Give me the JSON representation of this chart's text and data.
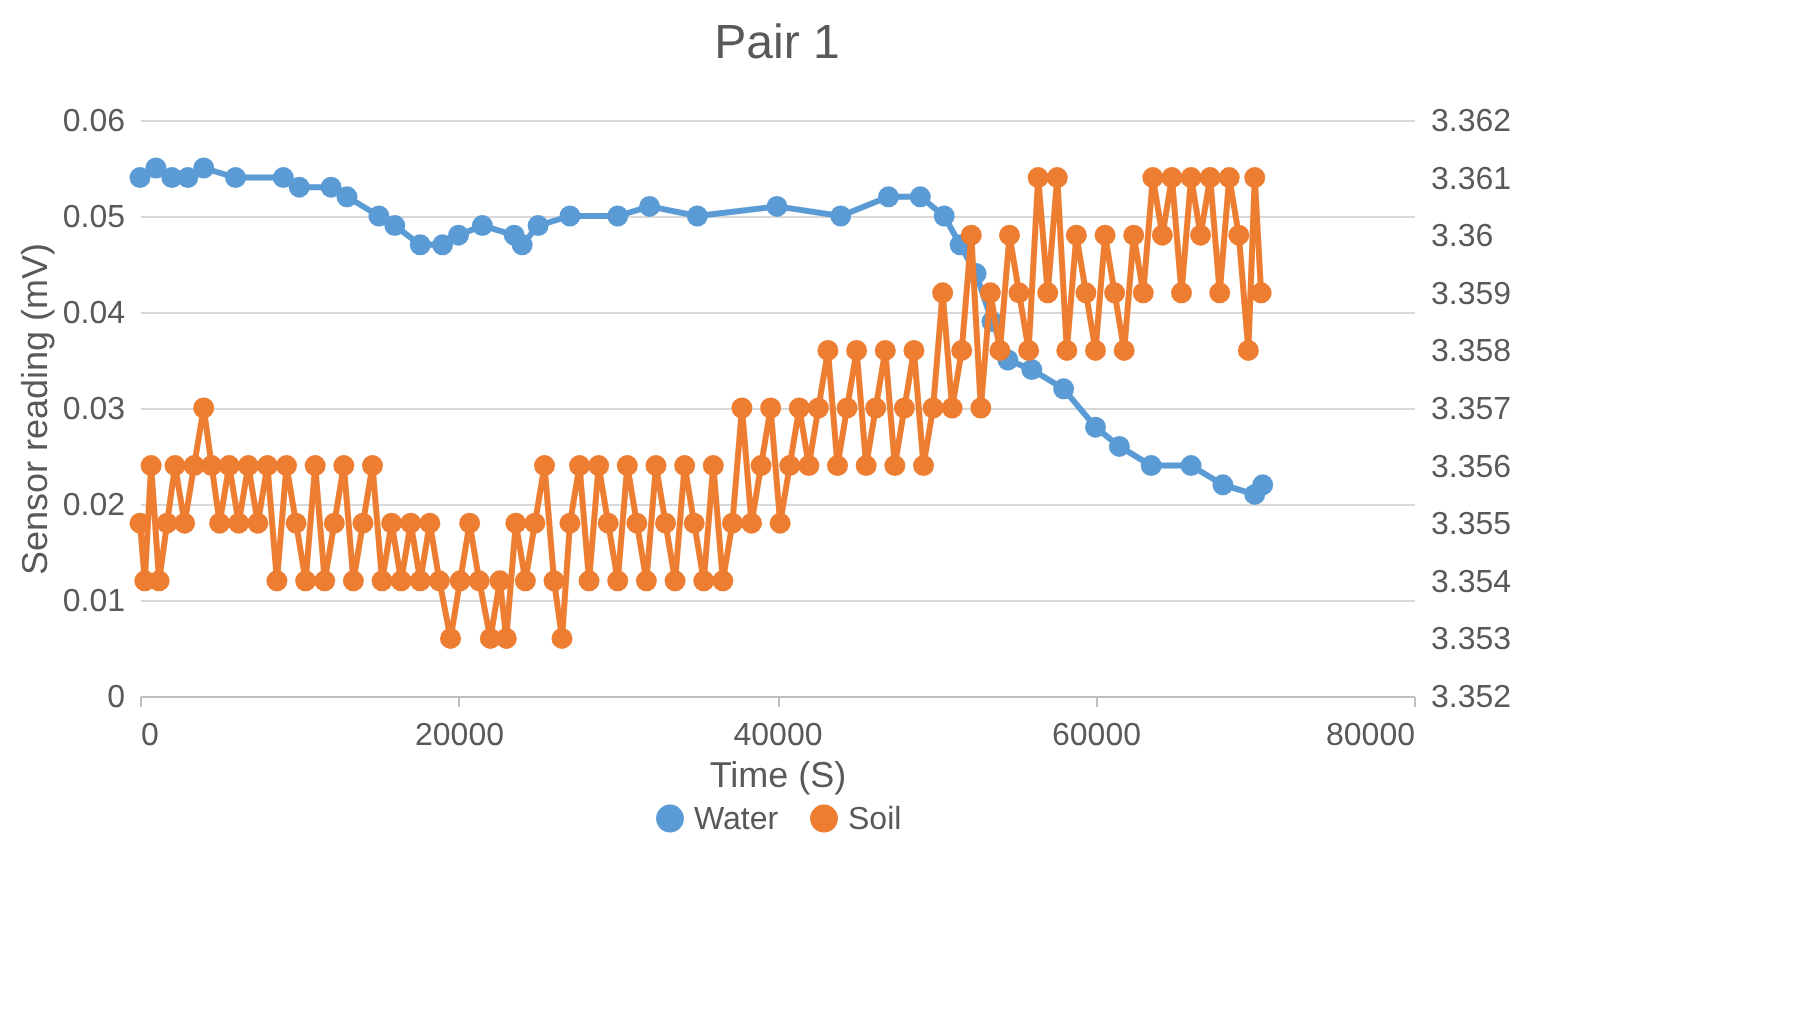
{
  "chart_data": {
    "type": "line",
    "title": "Pair 1",
    "xlabel": "Time (S)",
    "ylabel": "Sensor reading (mV)",
    "xlim": [
      0,
      80000
    ],
    "xticks": [
      0,
      20000,
      40000,
      60000,
      80000
    ],
    "ylim": [
      0,
      0.06
    ],
    "yticks": [
      0,
      0.01,
      0.02,
      0.03,
      0.04,
      0.05,
      0.06
    ],
    "y2lim": [
      3.352,
      3.362
    ],
    "y2ticks": [
      3.352,
      3.353,
      3.354,
      3.355,
      3.356,
      3.357,
      3.358,
      3.359,
      3.36,
      3.361,
      3.362
    ],
    "grid": "y",
    "legend": "bottom",
    "marker": "circle",
    "line_style": "solid",
    "series": [
      {
        "name": "Water",
        "color": "#5b9bd5",
        "x": [
          0,
          1000,
          2000,
          3000,
          4000,
          6000,
          9000,
          10000,
          12000,
          13000,
          15000,
          16000,
          17600,
          19000,
          20000,
          21500,
          23500,
          24000,
          25000,
          27000,
          30000,
          32000,
          35000,
          40000,
          44000,
          47000,
          49000,
          50500,
          51500,
          52500,
          53500,
          54500,
          56000,
          58000,
          60000,
          61500,
          63500,
          66000,
          68000,
          70000,
          70500
        ],
        "values": [
          0.054,
          0.055,
          0.054,
          0.054,
          0.055,
          0.054,
          0.054,
          0.053,
          0.053,
          0.052,
          0.05,
          0.049,
          0.047,
          0.047,
          0.048,
          0.049,
          0.048,
          0.047,
          0.049,
          0.05,
          0.05,
          0.051,
          0.05,
          0.051,
          0.05,
          0.052,
          0.052,
          0.05,
          0.047,
          0.044,
          0.039,
          0.035,
          0.034,
          0.032,
          0.028,
          0.026,
          0.024,
          0.024,
          0.022,
          0.021,
          0.022
        ]
      },
      {
        "name": "Soil",
        "color": "#ed7d31",
        "axis": "y2",
        "x": [
          0,
          300,
          700,
          1200,
          1700,
          2200,
          2800,
          3400,
          4000,
          4500,
          5000,
          5600,
          6200,
          6800,
          7400,
          8000,
          8600,
          9200,
          9800,
          10400,
          11000,
          11600,
          12200,
          12800,
          13400,
          14000,
          14600,
          15200,
          15800,
          16400,
          17000,
          17600,
          18200,
          18800,
          19500,
          20100,
          20700,
          21300,
          22000,
          22600,
          23000,
          23600,
          24200,
          24800,
          25400,
          26000,
          26500,
          27000,
          27600,
          28200,
          28800,
          29400,
          30000,
          30600,
          31200,
          31800,
          32400,
          33000,
          33600,
          34200,
          34800,
          35400,
          36000,
          36600,
          37200,
          37800,
          38400,
          39000,
          39600,
          40200,
          40800,
          41400,
          42000,
          42600,
          43200,
          43800,
          44400,
          45000,
          45600,
          46200,
          46800,
          47400,
          48000,
          48600,
          49200,
          49800,
          50400,
          51000,
          51600,
          52200,
          52800,
          53400,
          54000,
          54600,
          55200,
          55800,
          56400,
          57000,
          57600,
          58200,
          58800,
          59400,
          60000,
          60600,
          61200,
          61800,
          62400,
          63000,
          63600,
          64200,
          64800,
          65400,
          66000,
          66600,
          67200,
          67800,
          68400,
          69000,
          69600,
          70000,
          70400
        ],
        "values": [
          3.355,
          3.354,
          3.356,
          3.354,
          3.355,
          3.356,
          3.355,
          3.356,
          3.357,
          3.356,
          3.355,
          3.356,
          3.355,
          3.356,
          3.355,
          3.356,
          3.354,
          3.356,
          3.355,
          3.354,
          3.356,
          3.354,
          3.355,
          3.356,
          3.354,
          3.355,
          3.356,
          3.354,
          3.355,
          3.354,
          3.355,
          3.354,
          3.355,
          3.354,
          3.353,
          3.354,
          3.355,
          3.354,
          3.353,
          3.354,
          3.353,
          3.355,
          3.354,
          3.355,
          3.356,
          3.354,
          3.353,
          3.355,
          3.356,
          3.354,
          3.356,
          3.355,
          3.354,
          3.356,
          3.355,
          3.354,
          3.356,
          3.355,
          3.354,
          3.356,
          3.355,
          3.354,
          3.356,
          3.354,
          3.355,
          3.357,
          3.355,
          3.356,
          3.357,
          3.355,
          3.356,
          3.357,
          3.356,
          3.357,
          3.358,
          3.356,
          3.357,
          3.358,
          3.356,
          3.357,
          3.358,
          3.356,
          3.357,
          3.358,
          3.356,
          3.357,
          3.359,
          3.357,
          3.358,
          3.36,
          3.357,
          3.359,
          3.358,
          3.36,
          3.359,
          3.358,
          3.361,
          3.359,
          3.361,
          3.358,
          3.36,
          3.359,
          3.358,
          3.36,
          3.359,
          3.358,
          3.36,
          3.359,
          3.361,
          3.36,
          3.361,
          3.359,
          3.361,
          3.36,
          3.361,
          3.359,
          3.361,
          3.36,
          3.358,
          3.361,
          3.359
        ]
      }
    ]
  }
}
